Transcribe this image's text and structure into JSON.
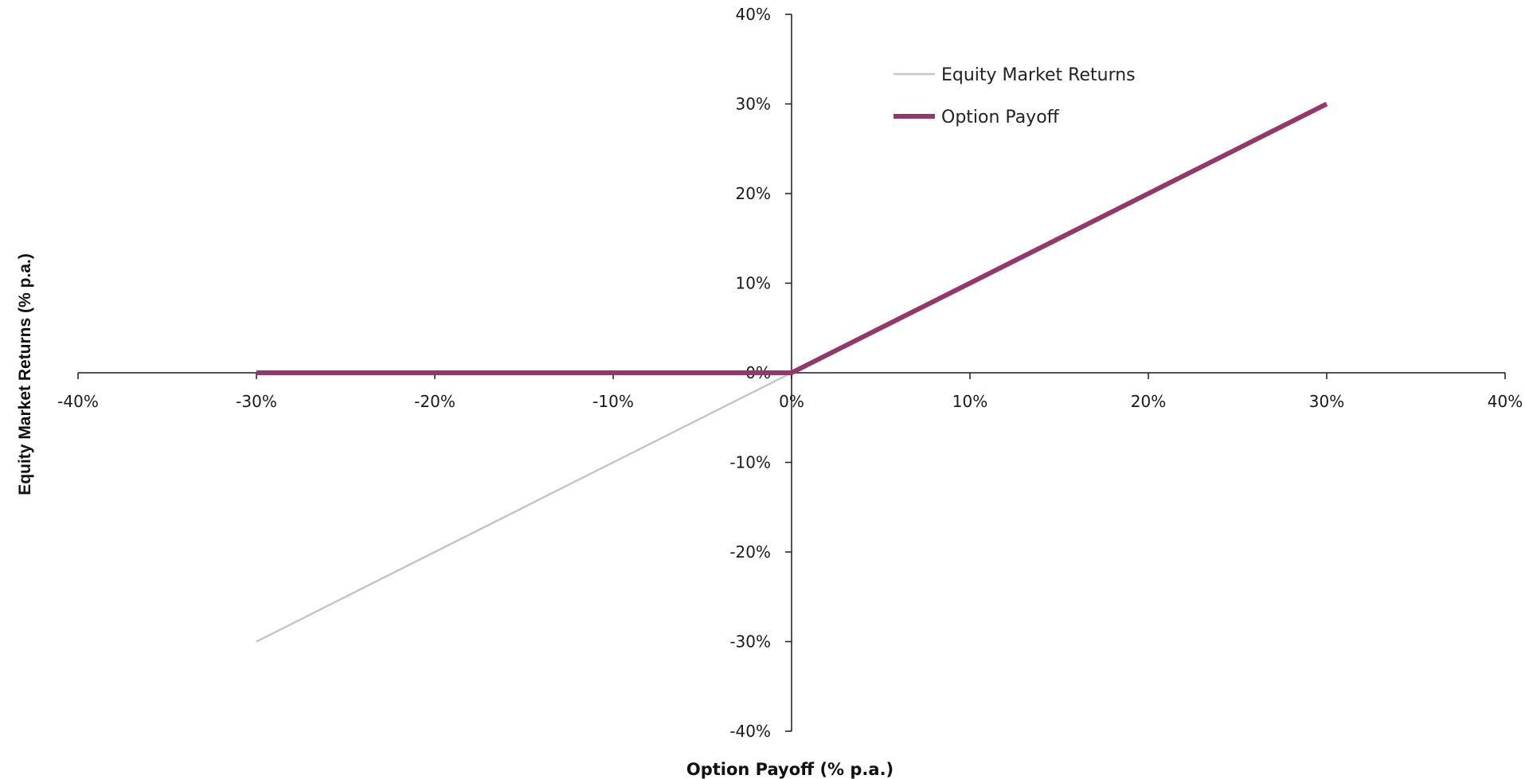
{
  "chart_data": {
    "type": "line",
    "xlabel": "Option Payoff (% p.a.)",
    "ylabel": "Equity Market Returns (% p.a.)",
    "xlim": [
      -40,
      40
    ],
    "ylim": [
      -40,
      40
    ],
    "xticks": [
      -40,
      -30,
      -20,
      -10,
      0,
      10,
      20,
      30,
      40
    ],
    "yticks": [
      -40,
      -30,
      -20,
      -10,
      0,
      10,
      20,
      30,
      40
    ],
    "xtick_labels": [
      "-40%",
      "-30%",
      "-20%",
      "-10%",
      "0%",
      "10%",
      "20%",
      "30%",
      "40%"
    ],
    "ytick_labels": [
      "-40%",
      "-30%",
      "-20%",
      "-10%",
      "0%",
      "10%",
      "20%",
      "30%",
      "40%"
    ],
    "grid": false,
    "legend_position": "top-right",
    "series": [
      {
        "name": "Equity Market Returns",
        "color": "#c6c6c6",
        "x": [
          -30,
          0,
          30
        ],
        "y": [
          -30,
          0,
          30
        ]
      },
      {
        "name": "Option Payoff",
        "color": "#93386a",
        "x": [
          -30,
          0,
          30
        ],
        "y": [
          0,
          0,
          30
        ]
      }
    ]
  }
}
